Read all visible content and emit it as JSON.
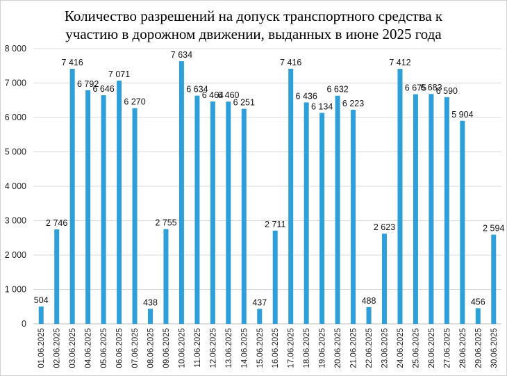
{
  "chart_data": {
    "type": "bar",
    "title_line1": "Количество разрешений на допуск транспортного средства к",
    "title_line2": "участию в дорожном движении, выданных в июне 2025 года",
    "categories": [
      "01.06.2025",
      "02.06.2025",
      "03.06.2025",
      "04.06.2025",
      "05.06.2025",
      "06.06.2025",
      "07.06.2025",
      "08.06.2025",
      "09.06.2025",
      "10.06.2025",
      "11.06.2025",
      "12.06.2025",
      "13.06.2025",
      "14.06.2025",
      "15.06.2025",
      "16.06.2025",
      "17.06.2025",
      "18.06.2025",
      "19.06.2025",
      "20.06.2025",
      "21.06.2025",
      "22.06.2025",
      "23.06.2025",
      "24.06.2025",
      "25.06.2025",
      "26.06.2025",
      "27.06.2025",
      "28.06.2025",
      "29.06.2025",
      "30.06.2025"
    ],
    "values": [
      504,
      2746,
      7416,
      6792,
      6646,
      7071,
      6270,
      438,
      2755,
      7634,
      6634,
      6464,
      6460,
      6251,
      437,
      2711,
      7416,
      6436,
      6134,
      6632,
      6223,
      488,
      2623,
      7412,
      6675,
      6683,
      6590,
      5904,
      456,
      2594
    ],
    "data_labels": [
      "504",
      "2 746",
      "7 416",
      "6 792",
      "6 646",
      "7 071",
      "6 270",
      "438",
      "2 755",
      "7 634",
      "6 634",
      "6 464",
      "6 460",
      "6 251",
      "437",
      "2 711",
      "7 416",
      "6 436",
      "6 134",
      "6 632",
      "6 223",
      "488",
      "2 623",
      "7 412",
      "6 675",
      "6 683",
      "6 590",
      "5 904",
      "456",
      "2 594"
    ],
    "ylim": [
      0,
      8000
    ],
    "yticks": [
      0,
      1000,
      2000,
      3000,
      4000,
      5000,
      6000,
      7000,
      8000
    ],
    "ytick_labels": [
      "0",
      "1 000",
      "2 000",
      "3 000",
      "4 000",
      "5 000",
      "6 000",
      "7 000",
      "8 000"
    ],
    "xlabel": "",
    "ylabel": "",
    "grid": true,
    "legend": "none",
    "colors": {
      "bar": "#2E9FD8",
      "grid": "#d9d9d9",
      "axis": "#bfbfbf"
    }
  }
}
